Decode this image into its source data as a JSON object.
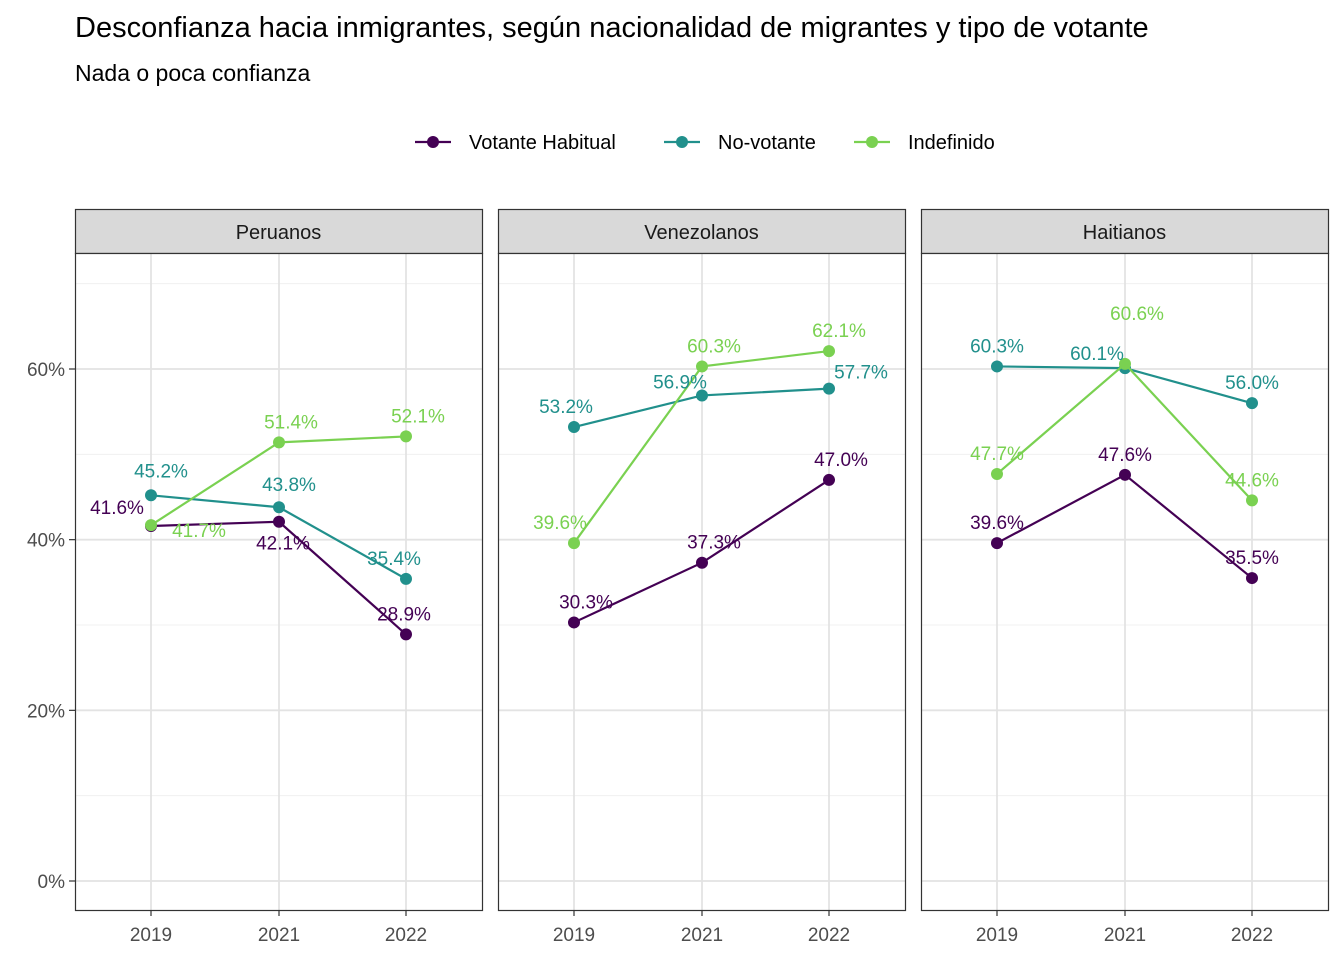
{
  "title": "Desconfianza hacia inmigrantes, según nacionalidad de migrantes y tipo de votante",
  "subtitle": "Nada o poca confianza",
  "chart_data": {
    "type": "line",
    "x": [
      "2019",
      "2021",
      "2022"
    ],
    "ylim": [
      0,
      72
    ],
    "yticks": [
      0,
      20,
      40,
      60
    ],
    "ytick_labels": [
      "0%",
      "20%",
      "40%",
      "60%"
    ],
    "grid": true,
    "legend_position": "top",
    "series_meta": [
      {
        "name": "Votante Habitual",
        "color": "#440154"
      },
      {
        "name": "No-votante",
        "color": "#21908C"
      },
      {
        "name": "Indefinido",
        "color": "#7AD151"
      }
    ],
    "panels": [
      {
        "name": "Peruanos",
        "series": [
          {
            "name": "Votante Habitual",
            "values": [
              41.6,
              42.1,
              28.9
            ],
            "labels": [
              "41.6%",
              "42.1%",
              "28.9%"
            ]
          },
          {
            "name": "No-votante",
            "values": [
              45.2,
              43.8,
              35.4
            ],
            "labels": [
              "45.2%",
              "43.8%",
              "35.4%"
            ]
          },
          {
            "name": "Indefinido",
            "values": [
              41.7,
              51.4,
              52.1
            ],
            "labels": [
              "41.7%",
              "51.4%",
              "52.1%"
            ]
          }
        ]
      },
      {
        "name": "Venezolanos",
        "series": [
          {
            "name": "Votante Habitual",
            "values": [
              30.3,
              37.3,
              47.0
            ],
            "labels": [
              "30.3%",
              "37.3%",
              "47.0%"
            ]
          },
          {
            "name": "No-votante",
            "values": [
              53.2,
              56.9,
              57.7
            ],
            "labels": [
              "53.2%",
              "56.9%",
              "57.7%"
            ]
          },
          {
            "name": "Indefinido",
            "values": [
              39.6,
              60.3,
              62.1
            ],
            "labels": [
              "39.6%",
              "60.3%",
              "62.1%"
            ]
          }
        ]
      },
      {
        "name": "Haitianos",
        "series": [
          {
            "name": "Votante Habitual",
            "values": [
              39.6,
              47.6,
              35.5
            ],
            "labels": [
              "39.6%",
              "47.6%",
              "35.5%"
            ]
          },
          {
            "name": "No-votante",
            "values": [
              60.3,
              60.1,
              56.0
            ],
            "labels": [
              "60.3%",
              "60.1%",
              "56.0%"
            ]
          },
          {
            "name": "Indefinido",
            "values": [
              47.7,
              60.6,
              44.6
            ],
            "labels": [
              "47.7%",
              "60.6%",
              "44.6%"
            ]
          }
        ]
      }
    ]
  }
}
